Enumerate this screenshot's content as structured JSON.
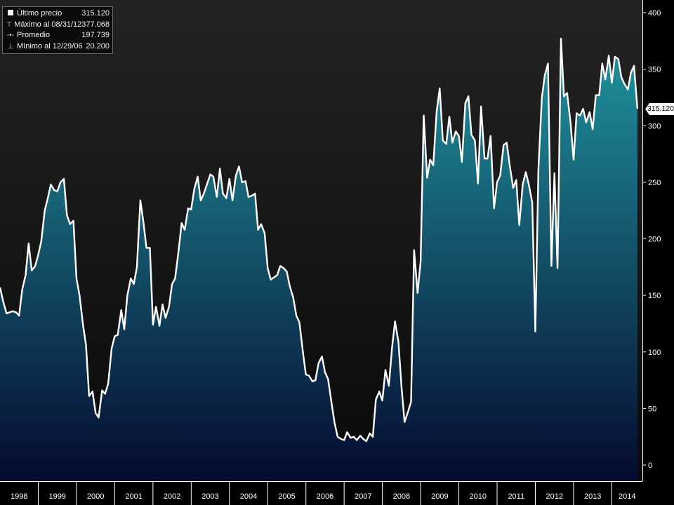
{
  "legend": {
    "items": [
      {
        "label": "Último precio",
        "value": "315.120",
        "icon": "filled-square-icon"
      },
      {
        "label": "Máximo al 08/31/12",
        "value": "377.068",
        "icon": "max-marker-icon"
      },
      {
        "label": "Promedio",
        "value": "197.739",
        "icon": "average-marker-icon"
      },
      {
        "label": "Mínimo al 12/29/06",
        "value": "20.200",
        "icon": "min-marker-icon"
      }
    ]
  },
  "last_price_tag": "315.120",
  "colors": {
    "background_top": "#232323",
    "background_bottom": "#0a0a0a",
    "area_top": "#1f8f9a",
    "area_bottom": "#050a30",
    "line": "#ffffff",
    "axis_text": "#ffffff"
  },
  "chart_data": {
    "type": "area",
    "title": "",
    "xlabel": "",
    "ylabel": "",
    "ylim": [
      0,
      400
    ],
    "xlim": [
      1998.0,
      2014.8
    ],
    "y_ticks": [
      0,
      50,
      100,
      150,
      200,
      250,
      300,
      350,
      400
    ],
    "x_tick_labels": [
      "1998",
      "1999",
      "2000",
      "2001",
      "2002",
      "2003",
      "2004",
      "2005",
      "2006",
      "2007",
      "2008",
      "2009",
      "2010",
      "2011",
      "2012",
      "2013",
      "2014"
    ],
    "grid": false,
    "legend_position": "top-left",
    "series": [
      {
        "name": "Último precio",
        "x": [
          1998.0,
          1998.08,
          1998.17,
          1998.25,
          1998.33,
          1998.42,
          1998.5,
          1998.58,
          1998.67,
          1998.75,
          1998.83,
          1998.92,
          1999.0,
          1999.08,
          1999.17,
          1999.25,
          1999.33,
          1999.42,
          1999.5,
          1999.58,
          1999.67,
          1999.75,
          1999.83,
          1999.92,
          2000.0,
          2000.08,
          2000.17,
          2000.25,
          2000.33,
          2000.42,
          2000.5,
          2000.58,
          2000.67,
          2000.75,
          2000.83,
          2000.92,
          2001.0,
          2001.08,
          2001.17,
          2001.25,
          2001.33,
          2001.42,
          2001.5,
          2001.58,
          2001.67,
          2001.75,
          2001.83,
          2001.92,
          2002.0,
          2002.08,
          2002.17,
          2002.25,
          2002.33,
          2002.42,
          2002.5,
          2002.58,
          2002.67,
          2002.75,
          2002.83,
          2002.92,
          2003.0,
          2003.08,
          2003.17,
          2003.25,
          2003.33,
          2003.42,
          2003.5,
          2003.58,
          2003.67,
          2003.75,
          2003.83,
          2003.92,
          2004.0,
          2004.08,
          2004.17,
          2004.25,
          2004.33,
          2004.42,
          2004.5,
          2004.58,
          2004.67,
          2004.75,
          2004.83,
          2004.92,
          2005.0,
          2005.08,
          2005.17,
          2005.25,
          2005.33,
          2005.42,
          2005.5,
          2005.58,
          2005.67,
          2005.75,
          2005.83,
          2005.92,
          2006.0,
          2006.08,
          2006.17,
          2006.25,
          2006.33,
          2006.42,
          2006.5,
          2006.58,
          2006.67,
          2006.75,
          2006.83,
          2006.92,
          2007.0,
          2007.08,
          2007.17,
          2007.25,
          2007.33,
          2007.42,
          2007.5,
          2007.58,
          2007.67,
          2007.75,
          2007.83,
          2007.92,
          2008.0,
          2008.08,
          2008.17,
          2008.25,
          2008.33,
          2008.42,
          2008.5,
          2008.58,
          2008.67,
          2008.75,
          2008.83,
          2008.92,
          2009.0,
          2009.08,
          2009.17,
          2009.25,
          2009.33,
          2009.42,
          2009.5,
          2009.58,
          2009.67,
          2009.75,
          2009.83,
          2009.92,
          2010.0,
          2010.08,
          2010.17,
          2010.25,
          2010.33,
          2010.42,
          2010.5,
          2010.58,
          2010.67,
          2010.75,
          2010.83,
          2010.92,
          2011.0,
          2011.08,
          2011.17,
          2011.25,
          2011.33,
          2011.42,
          2011.5,
          2011.58,
          2011.67,
          2011.75,
          2011.83,
          2011.92,
          2012.0,
          2012.08,
          2012.17,
          2012.25,
          2012.33,
          2012.42,
          2012.5,
          2012.58,
          2012.67,
          2012.75,
          2012.83,
          2012.92,
          2013.0,
          2013.08,
          2013.17,
          2013.25,
          2013.33,
          2013.42,
          2013.5,
          2013.58,
          2013.67,
          2013.75,
          2013.83,
          2013.92,
          2014.0,
          2014.08,
          2014.17,
          2014.25,
          2014.33,
          2014.42,
          2014.5,
          2014.58,
          2014.67
        ],
        "values": [
          157,
          145,
          134,
          135,
          136,
          135,
          132,
          155,
          168,
          196,
          172,
          176,
          186,
          198,
          225,
          236,
          248,
          243,
          242,
          250,
          253,
          221,
          213,
          216,
          165,
          150,
          124,
          106,
          61,
          65,
          46,
          42,
          66,
          63,
          72,
          103,
          114,
          115,
          137,
          120,
          150,
          165,
          160,
          175,
          234,
          215,
          192,
          192,
          124,
          140,
          123,
          142,
          130,
          140,
          160,
          165,
          189,
          214,
          208,
          227,
          226,
          244,
          255,
          234,
          240,
          249,
          257,
          255,
          237,
          262,
          240,
          236,
          253,
          234,
          256,
          264,
          250,
          251,
          237,
          238,
          240,
          208,
          213,
          205,
          174,
          164,
          166,
          168,
          176,
          174,
          171,
          158,
          148,
          132,
          126,
          100,
          80,
          79,
          74,
          75,
          90,
          96,
          82,
          76,
          55,
          37,
          25,
          23,
          22,
          29,
          24,
          25,
          22,
          26,
          23,
          21,
          28,
          25,
          58,
          65,
          57,
          84,
          70,
          103,
          127,
          109,
          69,
          38,
          47,
          56,
          190,
          152,
          180,
          309,
          254,
          270,
          265,
          313,
          333,
          287,
          284,
          308,
          285,
          295,
          291,
          268,
          320,
          326,
          292,
          287,
          249,
          317,
          271,
          271,
          291,
          227,
          250,
          256,
          283,
          285,
          265,
          245,
          252,
          212,
          248,
          259,
          248,
          232,
          118,
          262,
          325,
          345,
          355,
          176,
          258,
          174,
          377,
          326,
          329,
          303,
          270,
          311,
          309,
          315,
          303,
          312,
          297,
          327,
          327,
          355,
          341,
          362,
          338,
          361,
          359,
          343,
          337,
          332,
          347,
          353,
          315
        ]
      }
    ]
  }
}
